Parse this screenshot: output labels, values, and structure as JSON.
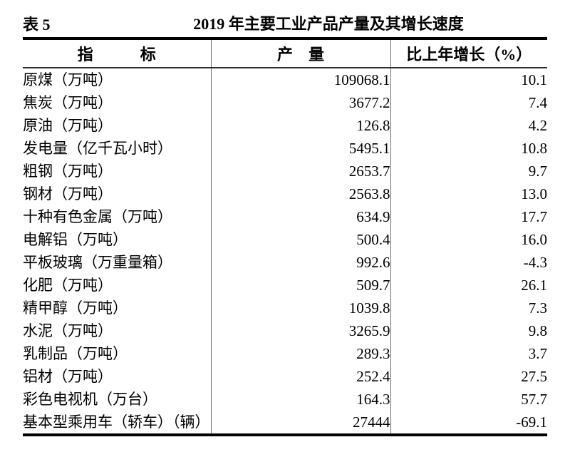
{
  "page": {
    "table_label": "表 5",
    "title": "2019 年主要工业产品产量及其增长速度"
  },
  "table": {
    "columns": {
      "indicator": "指　　　标",
      "output": "产　量",
      "growth": "比上年增长（%）"
    },
    "rows": [
      {
        "indicator": "原煤（万吨）",
        "output": "109068.1",
        "growth": "10.1"
      },
      {
        "indicator": "焦炭（万吨）",
        "output": "3677.2",
        "growth": "7.4"
      },
      {
        "indicator": "原油（万吨）",
        "output": "126.8",
        "growth": "4.2"
      },
      {
        "indicator": "发电量（亿千瓦小时）",
        "output": "5495.1",
        "growth": "10.8"
      },
      {
        "indicator": "粗钢（万吨）",
        "output": "2653.7",
        "growth": "9.7"
      },
      {
        "indicator": "钢材（万吨）",
        "output": "2563.8",
        "growth": "13.0"
      },
      {
        "indicator": "十种有色金属（万吨）",
        "output": "634.9",
        "growth": "17.7"
      },
      {
        "indicator": "电解铝（万吨）",
        "output": "500.4",
        "growth": "16.0"
      },
      {
        "indicator": "平板玻璃（万重量箱）",
        "output": "992.6",
        "growth": "-4.3"
      },
      {
        "indicator": "化肥（万吨）",
        "output": "509.7",
        "growth": "26.1"
      },
      {
        "indicator": "精甲醇（万吨）",
        "output": "1039.8",
        "growth": "7.3"
      },
      {
        "indicator": "水泥（万吨）",
        "output": "3265.9",
        "growth": "9.8"
      },
      {
        "indicator": "乳制品（万吨）",
        "output": "289.3",
        "growth": "3.7"
      },
      {
        "indicator": "铝材（万吨）",
        "output": "252.4",
        "growth": "27.5"
      },
      {
        "indicator": "彩色电视机（万台）",
        "output": "164.3",
        "growth": "57.7"
      },
      {
        "indicator": "基本型乘用车（轿车）（辆）",
        "output": "27444",
        "growth": "-69.1"
      }
    ],
    "colors": {
      "text": "#000000",
      "thick_rule": "#000000",
      "thin_rule": "#6e6e6e",
      "background": "#ffffff"
    }
  }
}
